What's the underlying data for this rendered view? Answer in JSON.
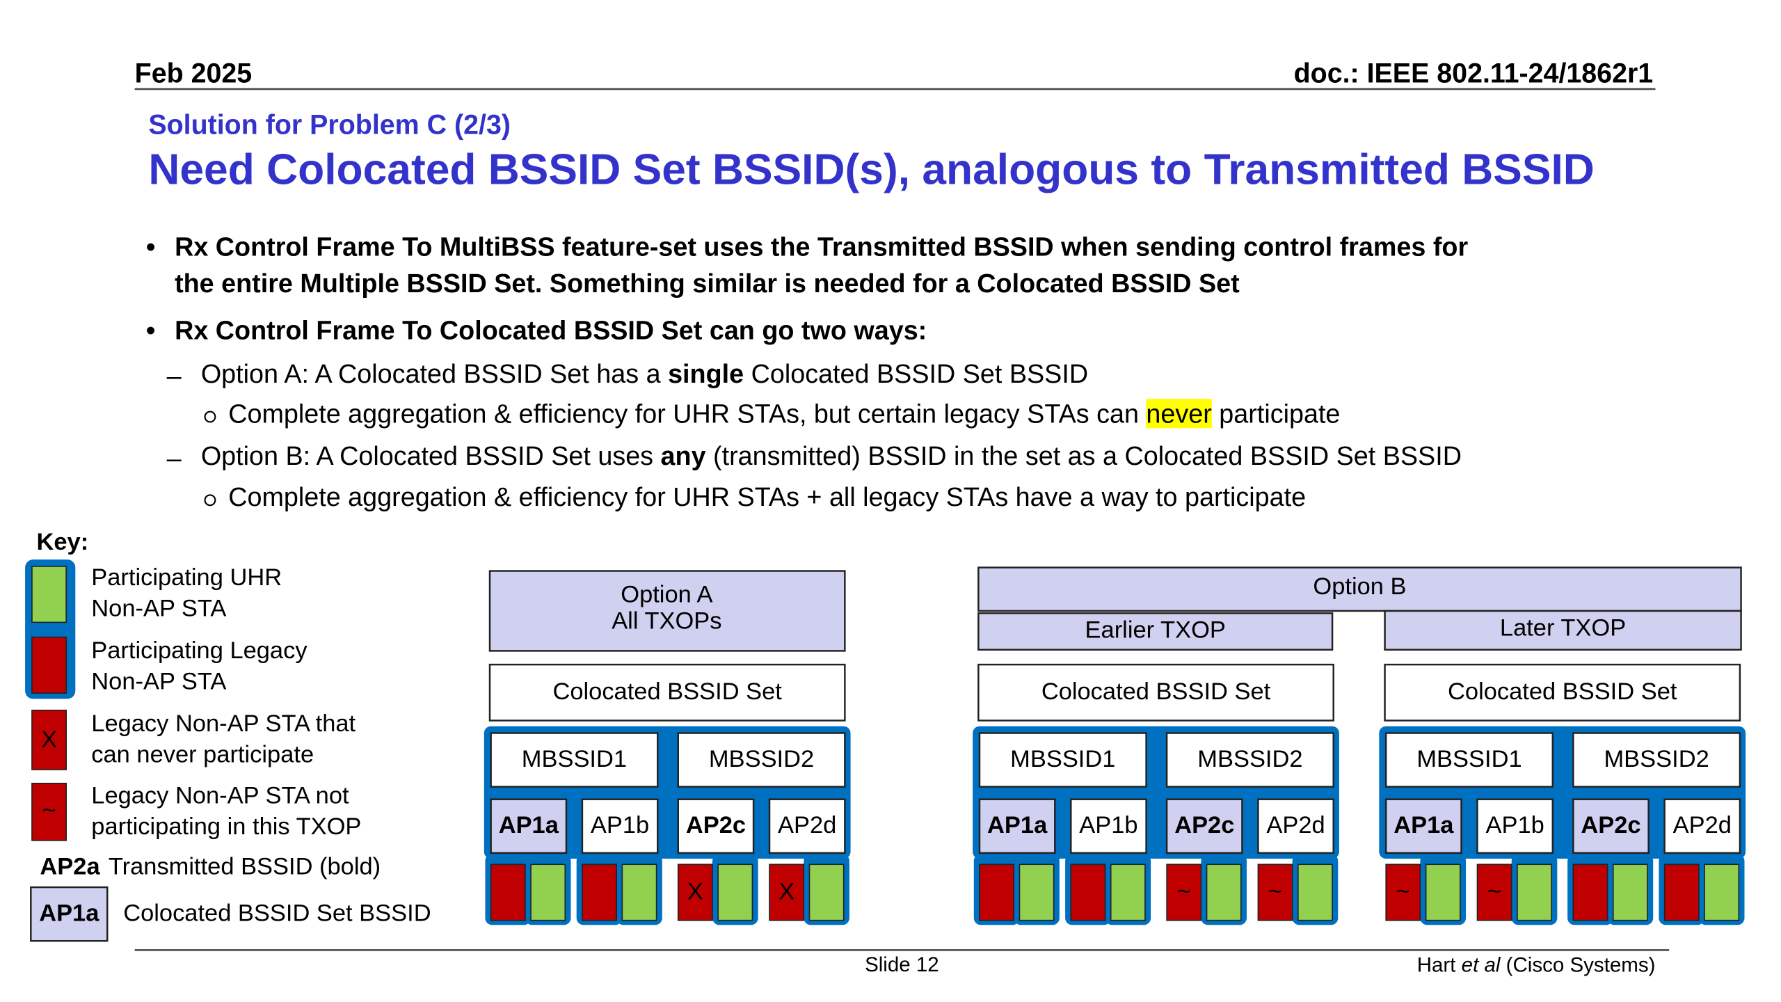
{
  "header": {
    "date": "Feb 2025",
    "doc": "doc.: IEEE 802.11-24/1862r1"
  },
  "subtitle": "Solution for Problem C (2/3)",
  "title": "Need Colocated BSSID Set BSSID(s), analogous to Transmitted BSSID",
  "bullets": [
    [
      "Rx Control Frame To MultiBSS feature-set uses the Transmitted BSSID when sending control frames for",
      "the entire Multiple BSSID Set. Something similar is needed for a Colocated BSSID Set"
    ],
    [
      "Rx Control Frame To Colocated BSSID Set can go two ways:"
    ],
    [
      "Option A: A Colocated BSSID Set has a ",
      "single",
      " Colocated BSSID Set BSSID"
    ],
    [
      "Complete aggregation & efficiency for UHR STAs, but certain legacy STAs can ",
      "never",
      " participate"
    ],
    [
      "Option B: A Colocated BSSID Set uses ",
      "any",
      " (transmitted) BSSID in the set as a Colocated BSSID Set BSSID"
    ],
    [
      "Complete aggregation & efficiency for UHR STAs + all legacy STAs have a way to participate"
    ]
  ],
  "key": {
    "title": "Key:",
    "items": [
      {
        "lines": [
          "Participating UHR",
          "Non-AP STA"
        ]
      },
      {
        "lines": [
          "Participating Legacy",
          "Non-AP STA"
        ]
      },
      {
        "mark": "X",
        "lines": [
          "Legacy Non-AP STA that",
          "can never participate"
        ]
      },
      {
        "mark": "~",
        "lines": [
          "Legacy Non-AP STA not",
          "participating in this TXOP"
        ]
      },
      {
        "ap": "AP2a",
        "lines": [
          "Transmitted BSSID (bold)"
        ]
      },
      {
        "ap": "AP1a",
        "lines": [
          "Colocated BSSID Set BSSID"
        ]
      }
    ]
  },
  "option_a": {
    "title": [
      "Option A",
      "All TXOPs"
    ],
    "panel": {
      "set": "Colocated BSSID Set",
      "mbssids": [
        "MBSSID1",
        "MBSSID2"
      ],
      "aps": [
        {
          "name": "AP1a",
          "transmitted": true,
          "colocated": true,
          "stations": [
            {
              "color": "#c00000"
            },
            {
              "color": "#92d050"
            }
          ]
        },
        {
          "name": "AP1b",
          "transmitted": false,
          "colocated": false,
          "stations": [
            {
              "color": "#c00000"
            },
            {
              "color": "#92d050"
            }
          ]
        },
        {
          "name": "AP2c",
          "transmitted": true,
          "colocated": false,
          "stations": [
            {
              "color": "#c00000",
              "mark": "X"
            },
            {
              "color": "#92d050"
            }
          ]
        },
        {
          "name": "AP2d",
          "transmitted": false,
          "colocated": false,
          "stations": [
            {
              "color": "#c00000",
              "mark": "X"
            },
            {
              "color": "#92d050"
            }
          ]
        }
      ]
    }
  },
  "option_b": {
    "title": "Option B",
    "panels": [
      {
        "txop": "Earlier TXOP",
        "set": "Colocated BSSID Set",
        "mbssids": [
          "MBSSID1",
          "MBSSID2"
        ],
        "aps": [
          {
            "name": "AP1a",
            "transmitted": true,
            "colocated": true,
            "stations": [
              {
                "color": "#c00000"
              },
              {
                "color": "#92d050"
              }
            ]
          },
          {
            "name": "AP1b",
            "transmitted": false,
            "colocated": false,
            "stations": [
              {
                "color": "#c00000"
              },
              {
                "color": "#92d050"
              }
            ]
          },
          {
            "name": "AP2c",
            "transmitted": true,
            "colocated": true,
            "stations": [
              {
                "color": "#c00000",
                "mark": "~"
              },
              {
                "color": "#92d050"
              }
            ]
          },
          {
            "name": "AP2d",
            "transmitted": false,
            "colocated": false,
            "stations": [
              {
                "color": "#c00000",
                "mark": "~"
              },
              {
                "color": "#92d050"
              }
            ]
          }
        ]
      },
      {
        "txop": "Later TXOP",
        "set": "Colocated BSSID Set",
        "mbssids": [
          "MBSSID1",
          "MBSSID2"
        ],
        "aps": [
          {
            "name": "AP1a",
            "transmitted": true,
            "colocated": true,
            "stations": [
              {
                "color": "#c00000",
                "mark": "~"
              },
              {
                "color": "#92d050"
              }
            ]
          },
          {
            "name": "AP1b",
            "transmitted": false,
            "colocated": false,
            "stations": [
              {
                "color": "#c00000",
                "mark": "~"
              },
              {
                "color": "#92d050"
              }
            ]
          },
          {
            "name": "AP2c",
            "transmitted": true,
            "colocated": true,
            "stations": [
              {
                "color": "#c00000"
              },
              {
                "color": "#92d050"
              }
            ]
          },
          {
            "name": "AP2d",
            "transmitted": false,
            "colocated": false,
            "stations": [
              {
                "color": "#c00000"
              },
              {
                "color": "#92d050"
              }
            ]
          }
        ]
      }
    ]
  },
  "footer": {
    "slide": "Slide 12",
    "author": [
      "Hart ",
      "et al",
      " (Cisco Systems)"
    ]
  }
}
